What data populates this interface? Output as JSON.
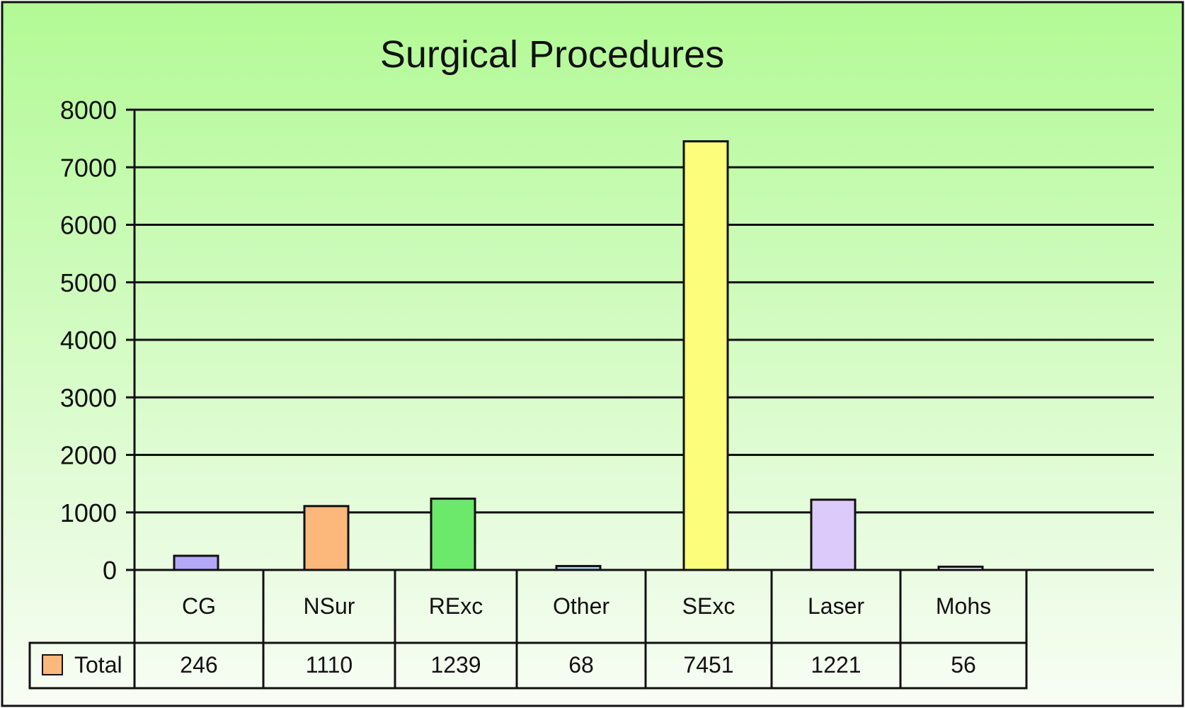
{
  "colors": {
    "background_top": "#b2fa95",
    "background_bottom": "#f8fdf5",
    "border": "#111111",
    "legend_swatch": "#fbb87a"
  },
  "chart_data": {
    "type": "bar",
    "title": "Surgical Procedures",
    "xlabel": "",
    "ylabel": "",
    "categories": [
      "CG",
      "NSur",
      "RExc",
      "Other",
      "SExc",
      "Laser",
      "Mohs"
    ],
    "series": [
      {
        "name": "Total",
        "values": [
          246,
          1110,
          1239,
          68,
          7451,
          1221,
          56
        ]
      }
    ],
    "bar_colors": [
      "#b4a8f8",
      "#fbb87a",
      "#6ce86b",
      "#a9cde9",
      "#fdfd7c",
      "#dccbfa",
      "#f2f2f2"
    ],
    "ylim": [
      0,
      8000
    ],
    "yticks": [
      0,
      1000,
      2000,
      3000,
      4000,
      5000,
      6000,
      7000,
      8000
    ],
    "grid": true,
    "legend": "data-table-left"
  }
}
